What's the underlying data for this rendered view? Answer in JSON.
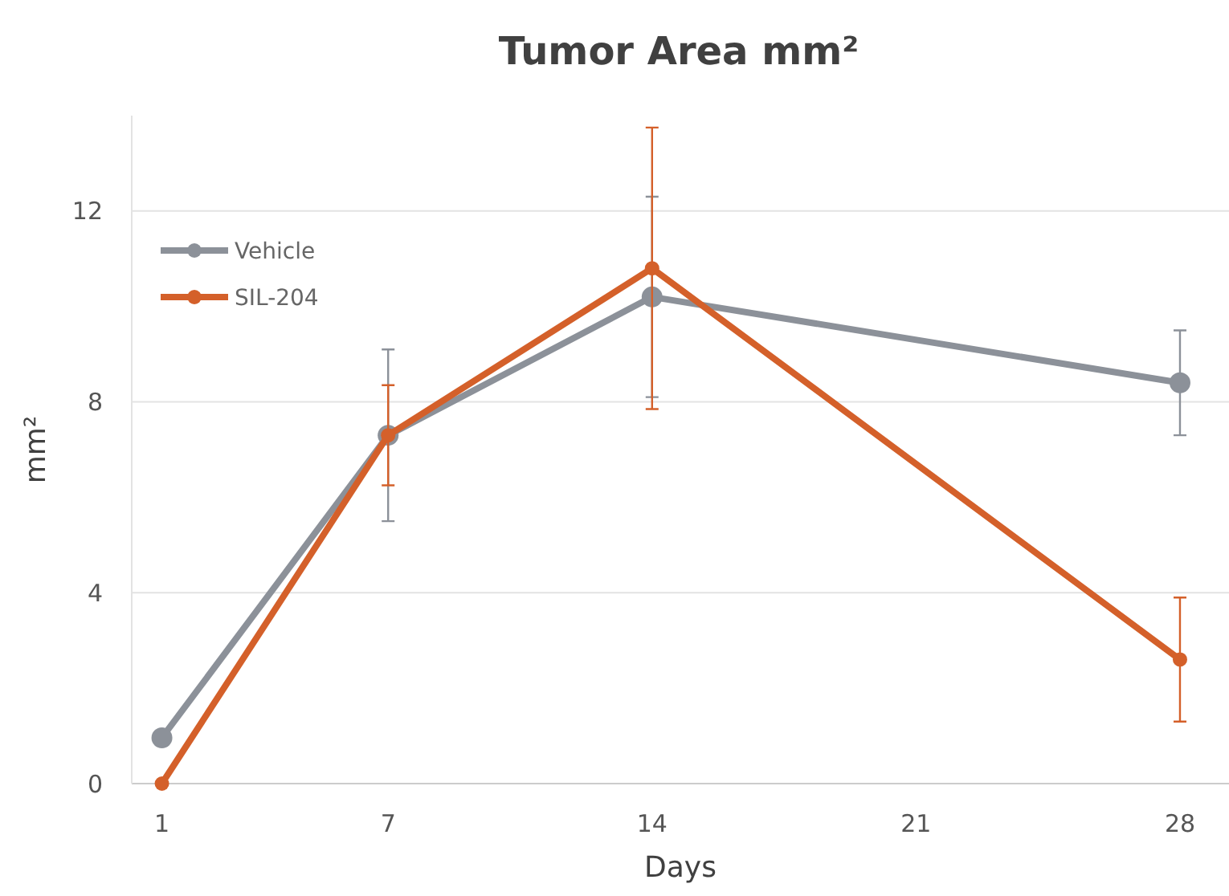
{
  "chart_data": {
    "type": "line",
    "title": "Tumor Area mm²",
    "xlabel": "Days",
    "ylabel": "mm²",
    "xlim": [
      0.2,
      29.3
    ],
    "xticks": [
      1,
      7,
      14,
      21,
      28
    ],
    "ylim": [
      0,
      14
    ],
    "yticks": [
      0,
      4,
      8,
      12
    ],
    "grid": "y",
    "legend": "top left",
    "marker": "circle",
    "line_style": "solid",
    "series": [
      {
        "name": "Vehicle",
        "color": "#8c9199",
        "x": [
          1,
          7,
          14,
          28
        ],
        "values": [
          0.96,
          7.3,
          10.2,
          8.4
        ],
        "errors": [
          null,
          1.8,
          2.1,
          1.1
        ]
      },
      {
        "name": "SIL-204",
        "color": "#d4602a",
        "x": [
          1,
          7,
          14,
          28
        ],
        "values": [
          0,
          7.3,
          10.8,
          2.6
        ],
        "errors": [
          null,
          1.05,
          2.95,
          1.3
        ]
      }
    ]
  }
}
